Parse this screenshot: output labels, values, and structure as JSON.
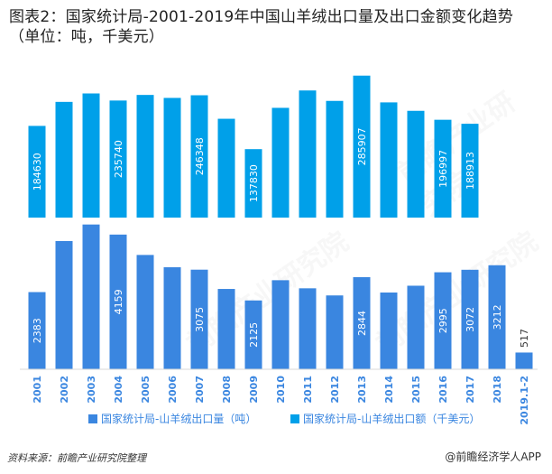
{
  "page": {
    "title": "图表2：国家统计局-2001-2019年中国山羊绒出口量及出口金额变化趋势（单位：吨，千美元）",
    "source": "资料来源：前瞻产业研究院整理",
    "brand": "@前瞻经济学人APP",
    "watermark": "前瞻产业研究院"
  },
  "colors": {
    "value_bars": "#00a0e9",
    "volume_bars": "#3a86e0",
    "axis_text": "#3a86e0",
    "bar_label": "#ffffff",
    "last_label": "#333333"
  },
  "chart_data": {
    "type": "bar",
    "categories": [
      "2001",
      "2002",
      "2003",
      "2004",
      "2005",
      "2006",
      "2007",
      "2008",
      "2009",
      "2010",
      "2011",
      "2012",
      "2013",
      "2014",
      "2015",
      "2016",
      "2017",
      "2018",
      "2019.1-2"
    ],
    "series": [
      {
        "name": "国家统计局-山羊绒出口额（千美元）",
        "values": [
          184630,
          233000,
          250000,
          235740,
          247000,
          241000,
          246348,
          199000,
          137830,
          221000,
          256000,
          235000,
          285907,
          232000,
          215000,
          196997,
          188913,
          null,
          null
        ],
        "labels": [
          "184630",
          "",
          "",
          "235740",
          "",
          "",
          "246348",
          "",
          "137830",
          "",
          "",
          "",
          "285907",
          "",
          "",
          "196997",
          "188913",
          "",
          ""
        ],
        "ylim": [
          0,
          300000
        ]
      },
      {
        "name": "国家统计局-山羊绒出口量（吨）",
        "values": [
          2383,
          3960,
          4470,
          4159,
          3530,
          3150,
          3075,
          2480,
          2125,
          2750,
          2500,
          2280,
          2844,
          2370,
          2580,
          2995,
          3072,
          3212,
          517
        ],
        "labels": [
          "2383",
          "",
          "",
          "4159",
          "",
          "",
          "3075",
          "",
          "2125",
          "",
          "",
          "",
          "2844",
          "",
          "",
          "2995",
          "3072",
          "3212",
          "517"
        ],
        "ylim": [
          0,
          4600
        ]
      }
    ],
    "legend": [
      "国家统计局-山羊绒出口量（吨）",
      "国家统计局-山羊绒出口额（千美元）"
    ],
    "legend_position": "bottom"
  }
}
